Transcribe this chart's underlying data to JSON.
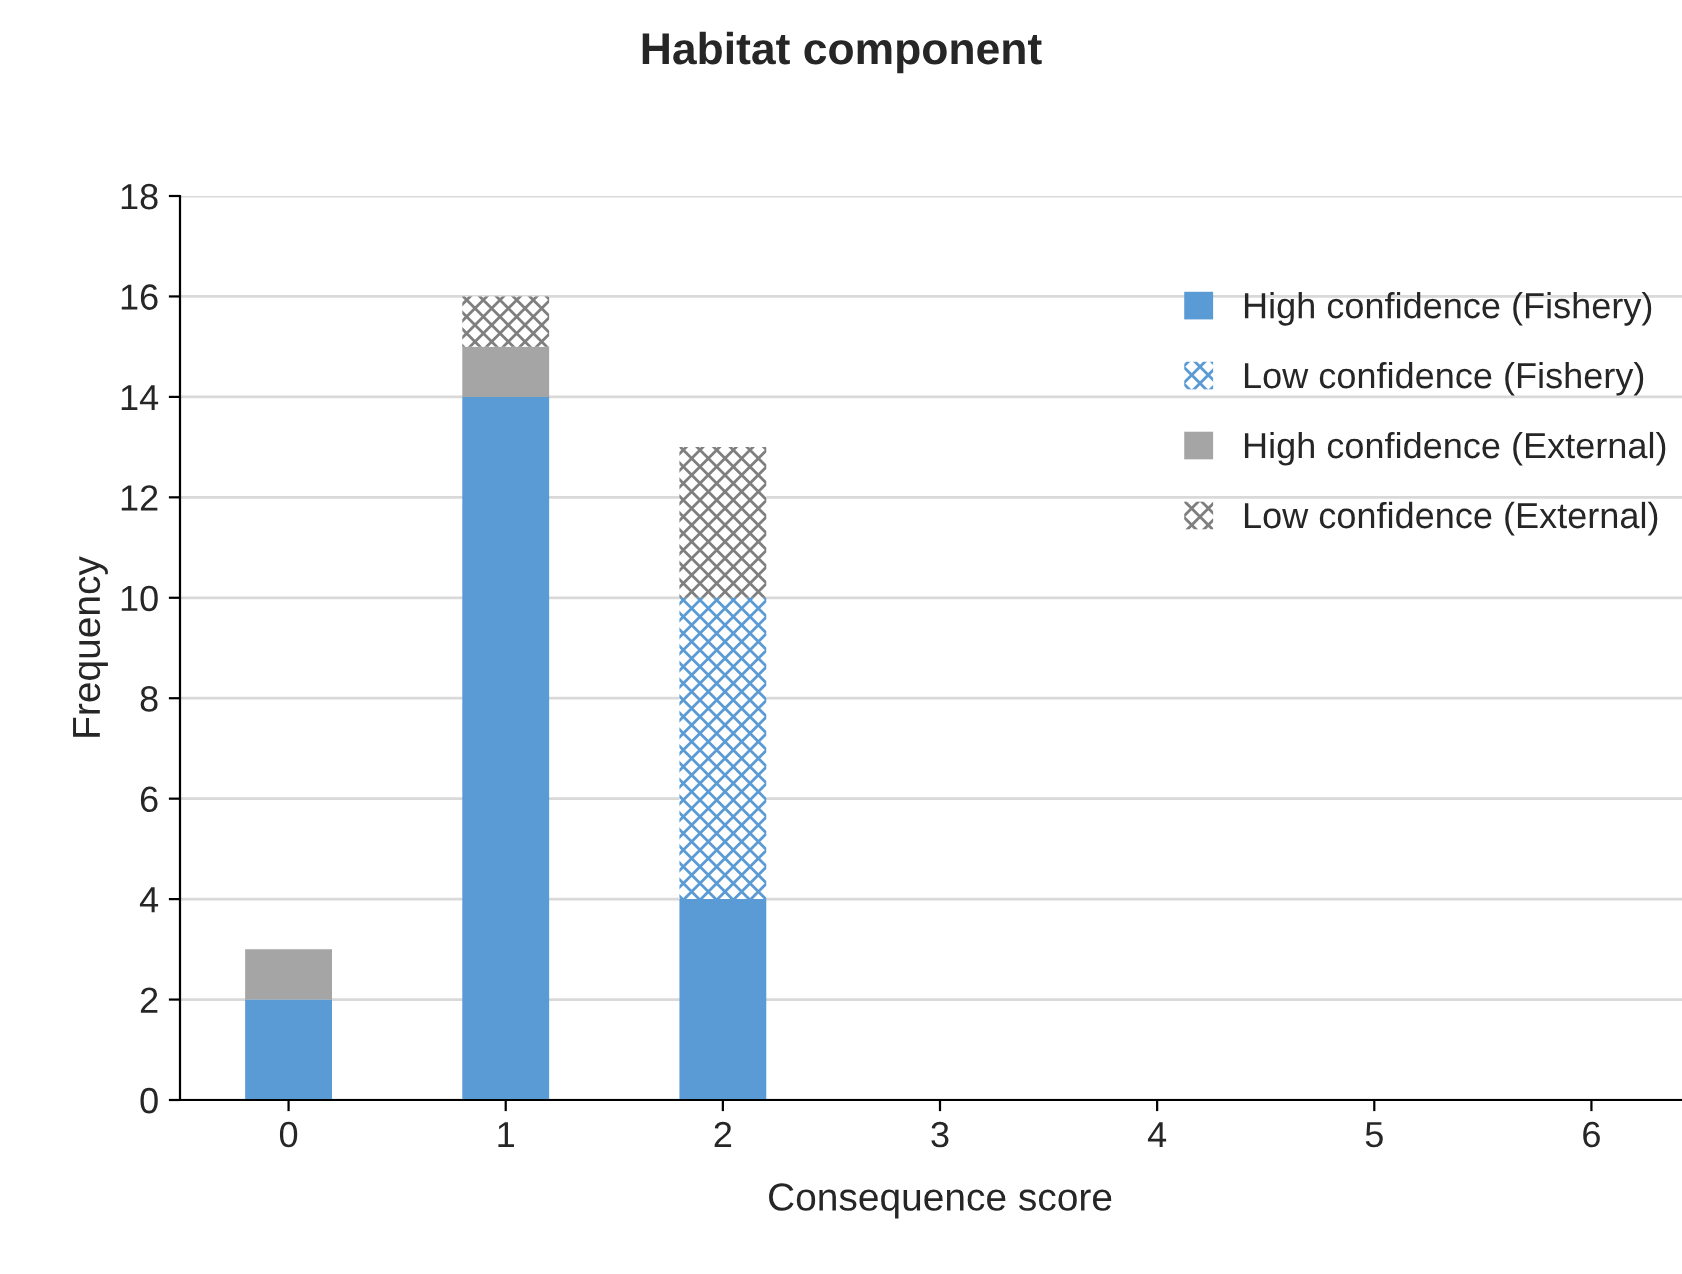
{
  "chart_data": {
    "type": "bar",
    "title": "Habitat component",
    "xlabel": "Consequence score",
    "ylabel": "Frequency",
    "categories": [
      "0",
      "1",
      "2",
      "3",
      "4",
      "5",
      "6"
    ],
    "stacked": true,
    "series": [
      {
        "name": "High confidence (Fishery)",
        "color": "#5b9bd5",
        "values": [
          2,
          14,
          4,
          0,
          0,
          0,
          0
        ]
      },
      {
        "name": "Low confidence (Fishery)",
        "color": "#5b9bd5",
        "values": [
          0,
          0,
          6,
          0,
          0,
          0,
          0
        ]
      },
      {
        "name": "High confidence (External)",
        "color": "#a5a5a5",
        "values": [
          1,
          1,
          0,
          0,
          0,
          0,
          0
        ]
      },
      {
        "name": "Low confidence (External)",
        "color": "#7f7f7f",
        "values": [
          0,
          1,
          3,
          0,
          0,
          0,
          0
        ]
      }
    ],
    "ylim": [
      0,
      18
    ],
    "yticks": [
      0,
      2,
      4,
      6,
      8,
      10,
      12,
      14,
      16,
      18
    ],
    "grid": "y",
    "legend": "top right"
  }
}
